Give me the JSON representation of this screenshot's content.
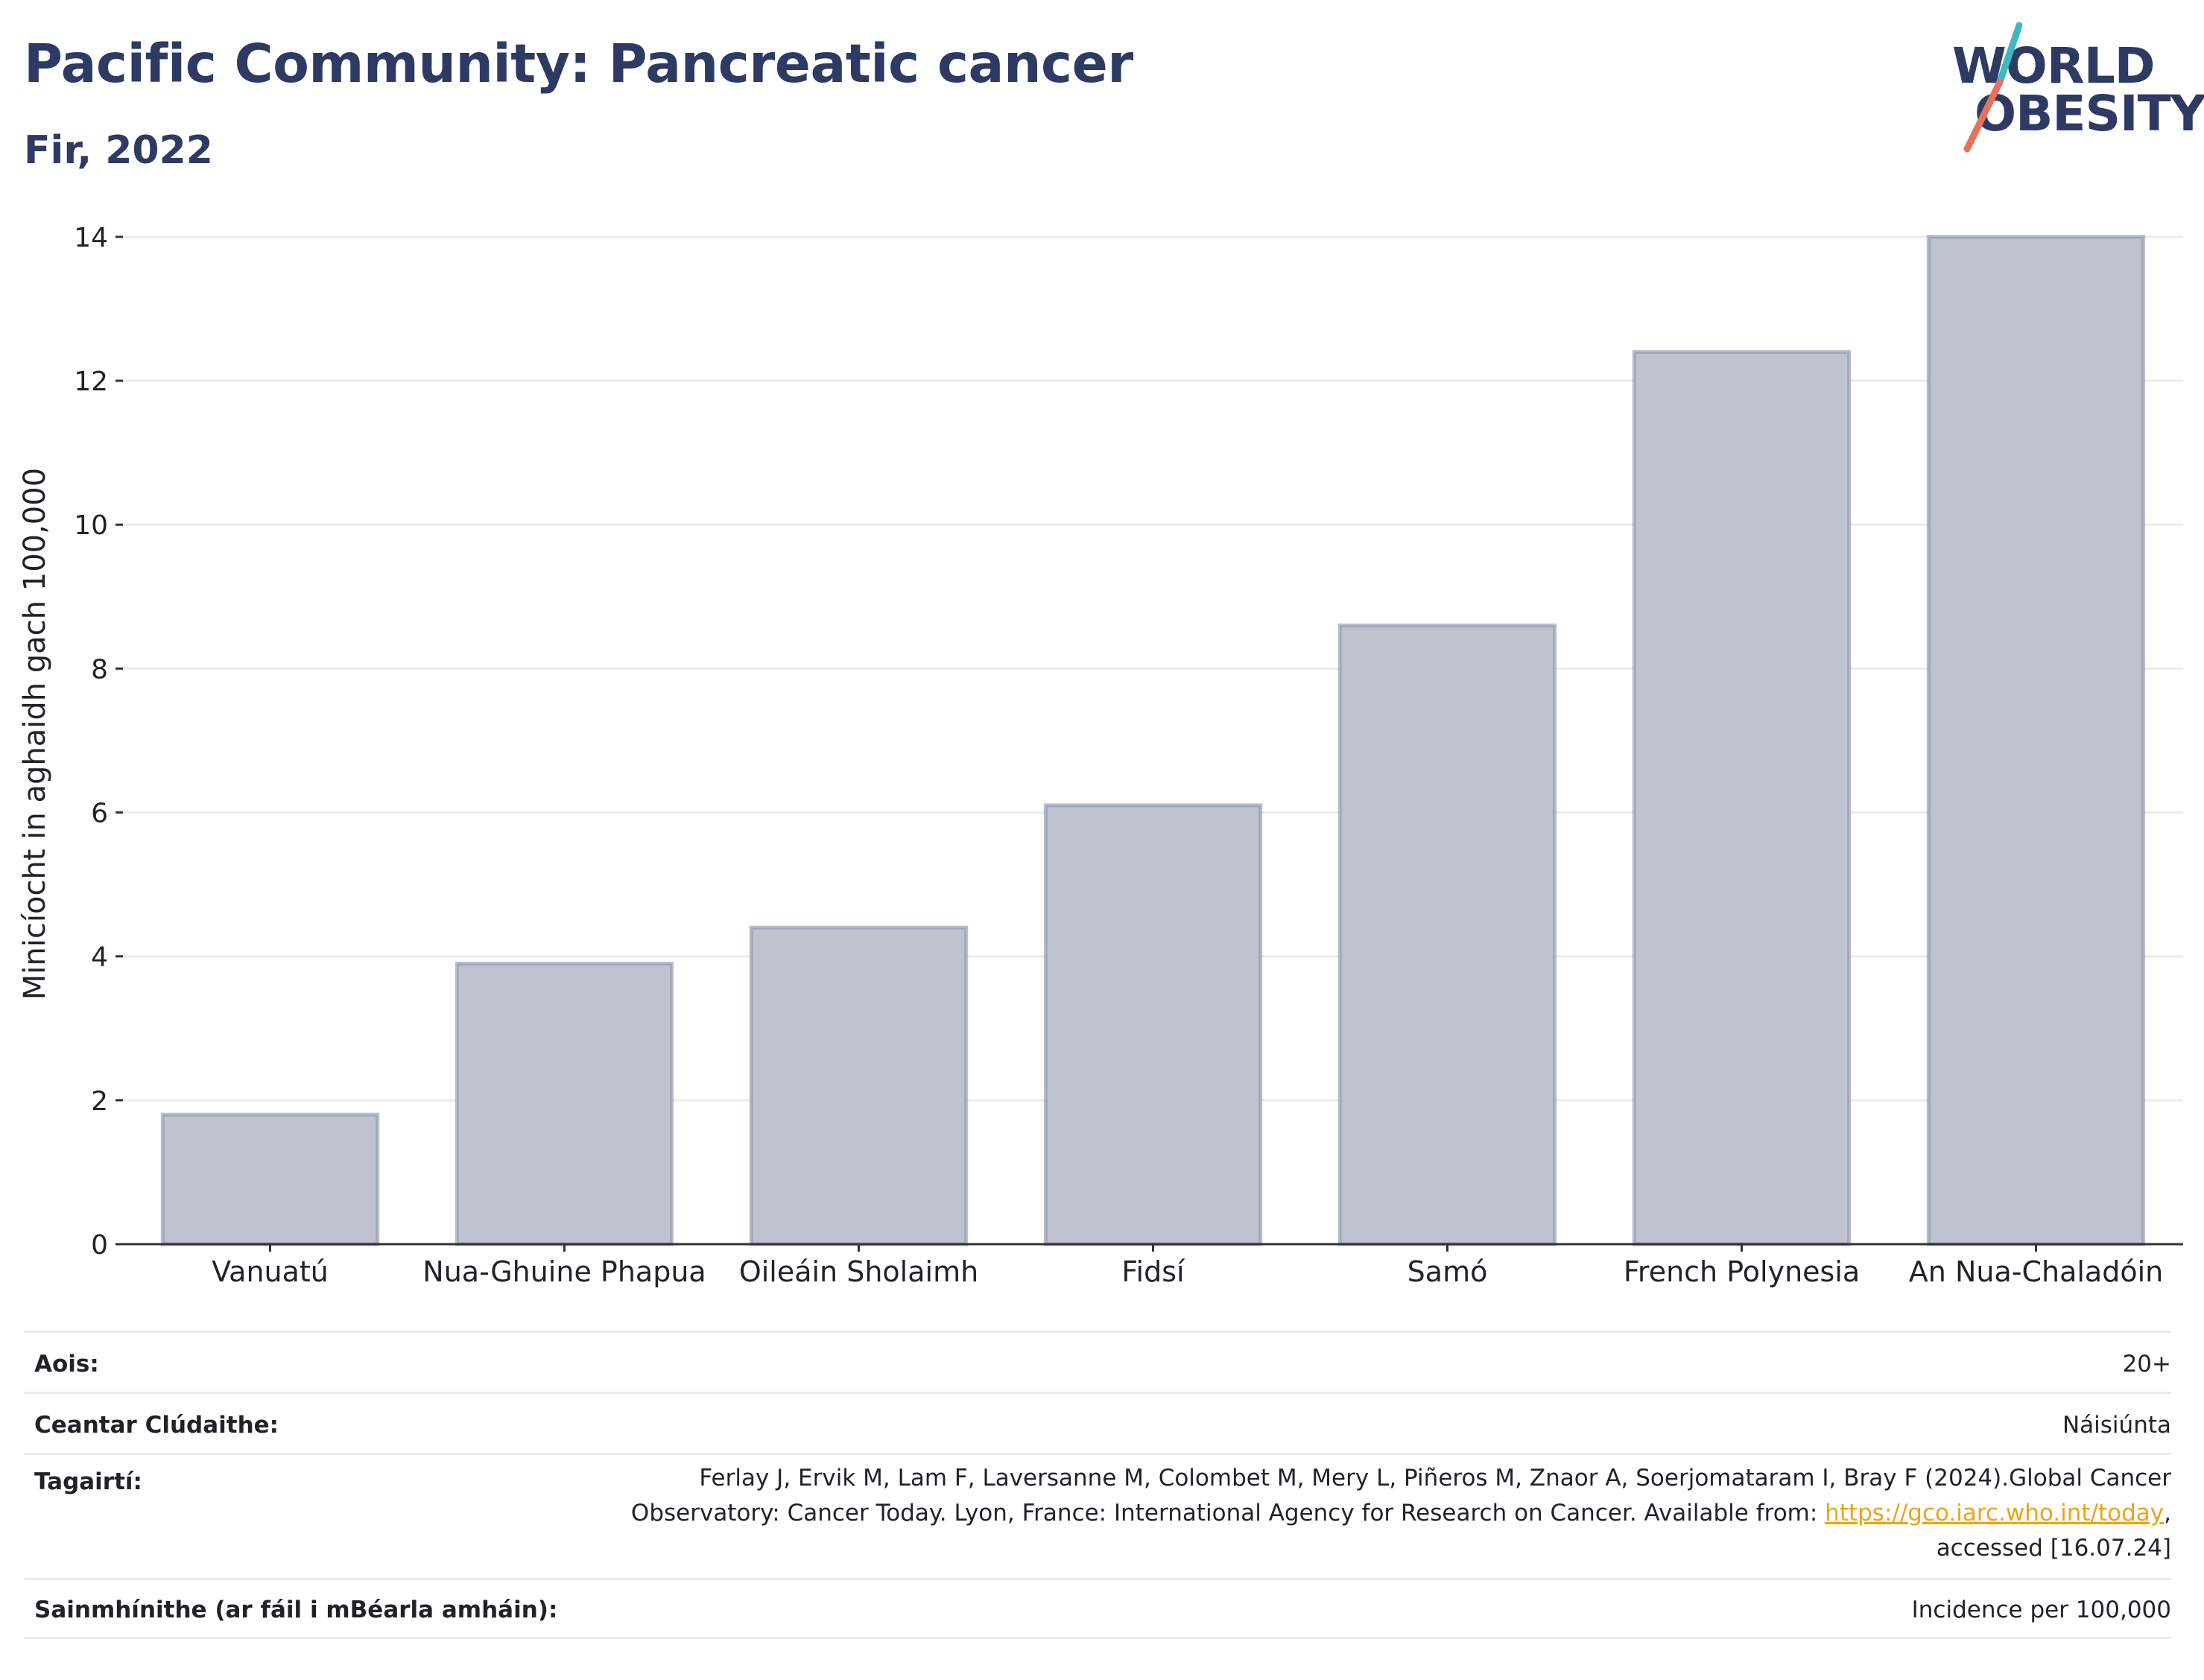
{
  "header": {
    "title": "Pacific Community: Pancreatic cancer",
    "subtitle": "Fir, 2022"
  },
  "logo": {
    "line1": "WORLD",
    "line2": "OBESITY",
    "accent_teal": "#3bb9c1",
    "accent_coral": "#e8705c"
  },
  "chart_data": {
    "type": "bar",
    "categories": [
      "Vanuatú",
      "Nua-Ghuine Phapua",
      "Oileáin Sholaimh",
      "Fidsí",
      "Samó",
      "French Polynesia",
      "An Nua-Chaladóin"
    ],
    "values": [
      1.8,
      3.9,
      4.4,
      6.1,
      8.6,
      12.4,
      14.0
    ],
    "ylabel": "Minicíocht in aghaidh gach 100,000",
    "xlabel": "",
    "ylim": [
      0,
      14.6
    ],
    "yticks": [
      0,
      2,
      4,
      6,
      8,
      10,
      12,
      14
    ],
    "grid": true,
    "bar_fill": "#bfc3cf",
    "bar_stroke": "#8c93ad",
    "title_color": "#2d3a64"
  },
  "info_table": {
    "age_label": "Aois:",
    "age_value": "20+",
    "coverage_label": "Ceantar Clúdaithe:",
    "coverage_value": "Náisiúnta",
    "references_label": "Tagairtí:",
    "references_line1": "Ferlay J, Ervik M, Lam F, Laversanne M, Colombet M, Mery L, Piñeros M, Znaor A, Soerjomataram I, Bray F (2024).Global Cancer",
    "references_line2": "Observatory: Cancer Today. Lyon, France: International Agency for Research on Cancer. Available from: ",
    "references_link": "https://gco.iarc.who.int/today",
    "references_line2_end": ",",
    "references_line3": "accessed [16.07.24]",
    "definitions_label": "Sainmhínithe (ar fáil i mBéarla amháin):",
    "definitions_value": "Incidence per 100,000",
    "link_color": "#e8a617"
  }
}
